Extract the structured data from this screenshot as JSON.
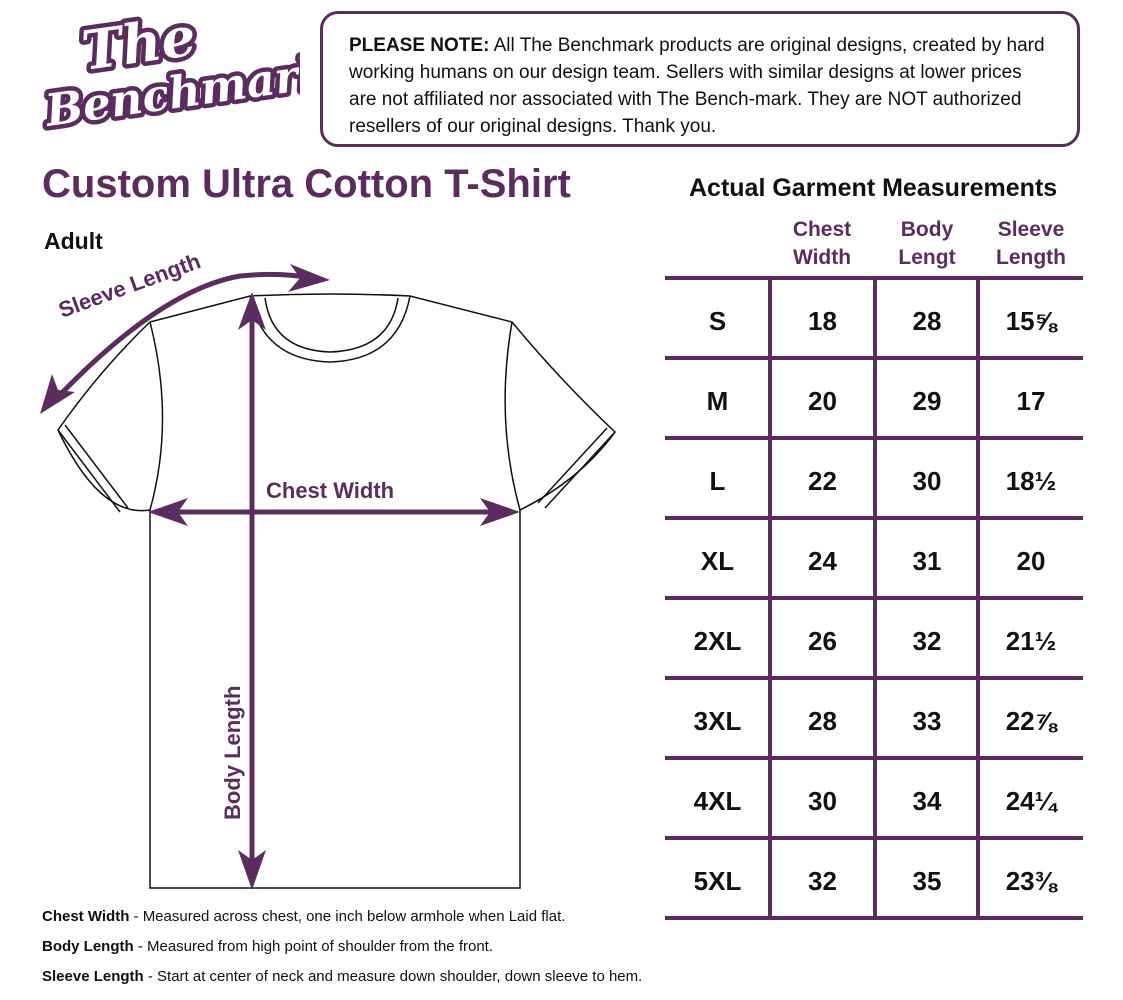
{
  "logo": {
    "text_line1": "The",
    "text_line2": "Benchmark"
  },
  "notice": {
    "label": "PLEASE NOTE:",
    "text": " All The Benchmark products are original designs, created by hard working humans on our design team. Sellers with similar designs at lower prices are not affiliated nor associated with The Bench-mark. They are NOT authorized resellers of our original designs. Thank you."
  },
  "product_title": "Custom Ultra Cotton T-Shirt",
  "subtitle": "Adult",
  "diagram": {
    "sleeve_label": "Sleeve Length",
    "chest_label": "Chest Width",
    "body_label": "Body Length"
  },
  "table": {
    "title": "Actual Garment Measurements",
    "headers": [
      [
        "Chest",
        "Width"
      ],
      [
        "Body",
        "Lengt"
      ],
      [
        "Sleeve",
        "Length"
      ]
    ],
    "rows": [
      {
        "size": "S",
        "chest": "18",
        "body": "28",
        "sleeve": "15⅝"
      },
      {
        "size": "M",
        "chest": "20",
        "body": "29",
        "sleeve": "17"
      },
      {
        "size": "L",
        "chest": "22",
        "body": "30",
        "sleeve": "18½"
      },
      {
        "size": "XL",
        "chest": "24",
        "body": "31",
        "sleeve": "20"
      },
      {
        "size": "2XL",
        "chest": "26",
        "body": "32",
        "sleeve": "21½"
      },
      {
        "size": "3XL",
        "chest": "28",
        "body": "33",
        "sleeve": "22⅞"
      },
      {
        "size": "4XL",
        "chest": "30",
        "body": "34",
        "sleeve": "24¼"
      },
      {
        "size": "5XL",
        "chest": "32",
        "body": "35",
        "sleeve": "23⅜"
      }
    ]
  },
  "footnotes": [
    {
      "term": "Chest Width",
      "desc": " - Measured across chest, one inch below armhole  when Laid flat."
    },
    {
      "term": "Body Length",
      "desc": " - Measured from high point of shoulder from the front."
    },
    {
      "term": "Sleeve Length",
      "desc": " - Start  at center of neck and measure down shoulder, down sleeve to hem."
    }
  ],
  "colors": {
    "brand_purple": "#5b2d5e"
  }
}
